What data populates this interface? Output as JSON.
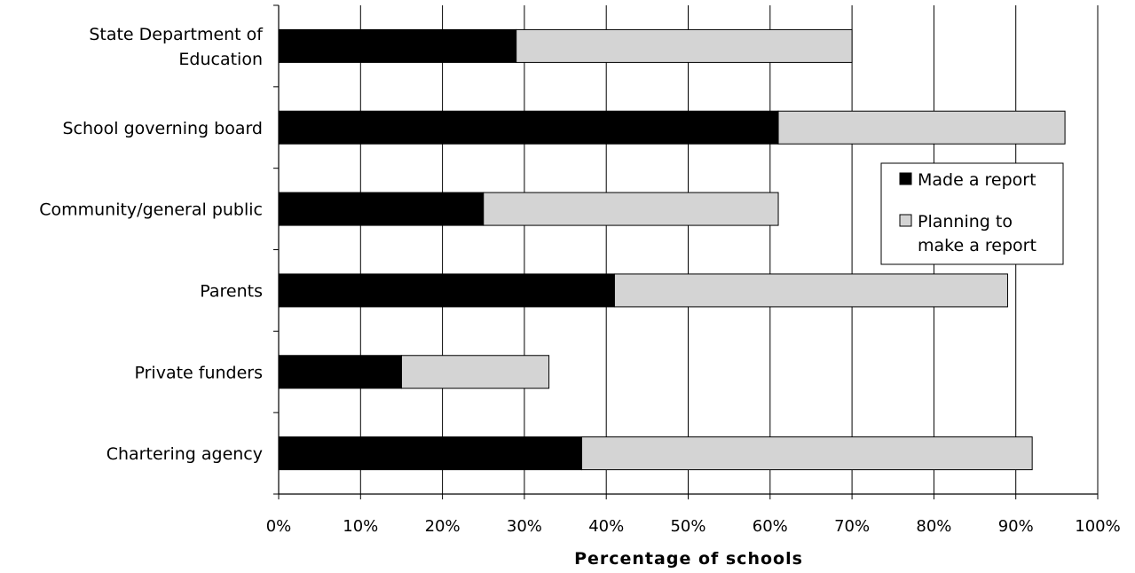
{
  "chart_data": {
    "type": "bar",
    "orientation": "horizontal",
    "stacked": true,
    "title": "",
    "xlabel": "Percentage of schools",
    "ylabel": "",
    "xlim": [
      0,
      100
    ],
    "x_ticks": [
      "0%",
      "10%",
      "20%",
      "30%",
      "40%",
      "50%",
      "60%",
      "70%",
      "80%",
      "90%",
      "100%"
    ],
    "grid": "vertical",
    "legend_position": "right",
    "categories": [
      [
        "State Department of",
        "Education"
      ],
      [
        "School governing board"
      ],
      [
        "Community/general public"
      ],
      [
        "Parents"
      ],
      [
        "Private funders"
      ],
      [
        "Chartering agency"
      ]
    ],
    "series": [
      {
        "name": "Made a report",
        "color": "#000000",
        "values": [
          29,
          61,
          25,
          41,
          15,
          37
        ]
      },
      {
        "name": "Planning to make a report",
        "legend_lines": [
          "Planning to",
          "make a report"
        ],
        "color": "#d4d4d4",
        "values": [
          41,
          35,
          36,
          48,
          18,
          55
        ]
      }
    ]
  }
}
